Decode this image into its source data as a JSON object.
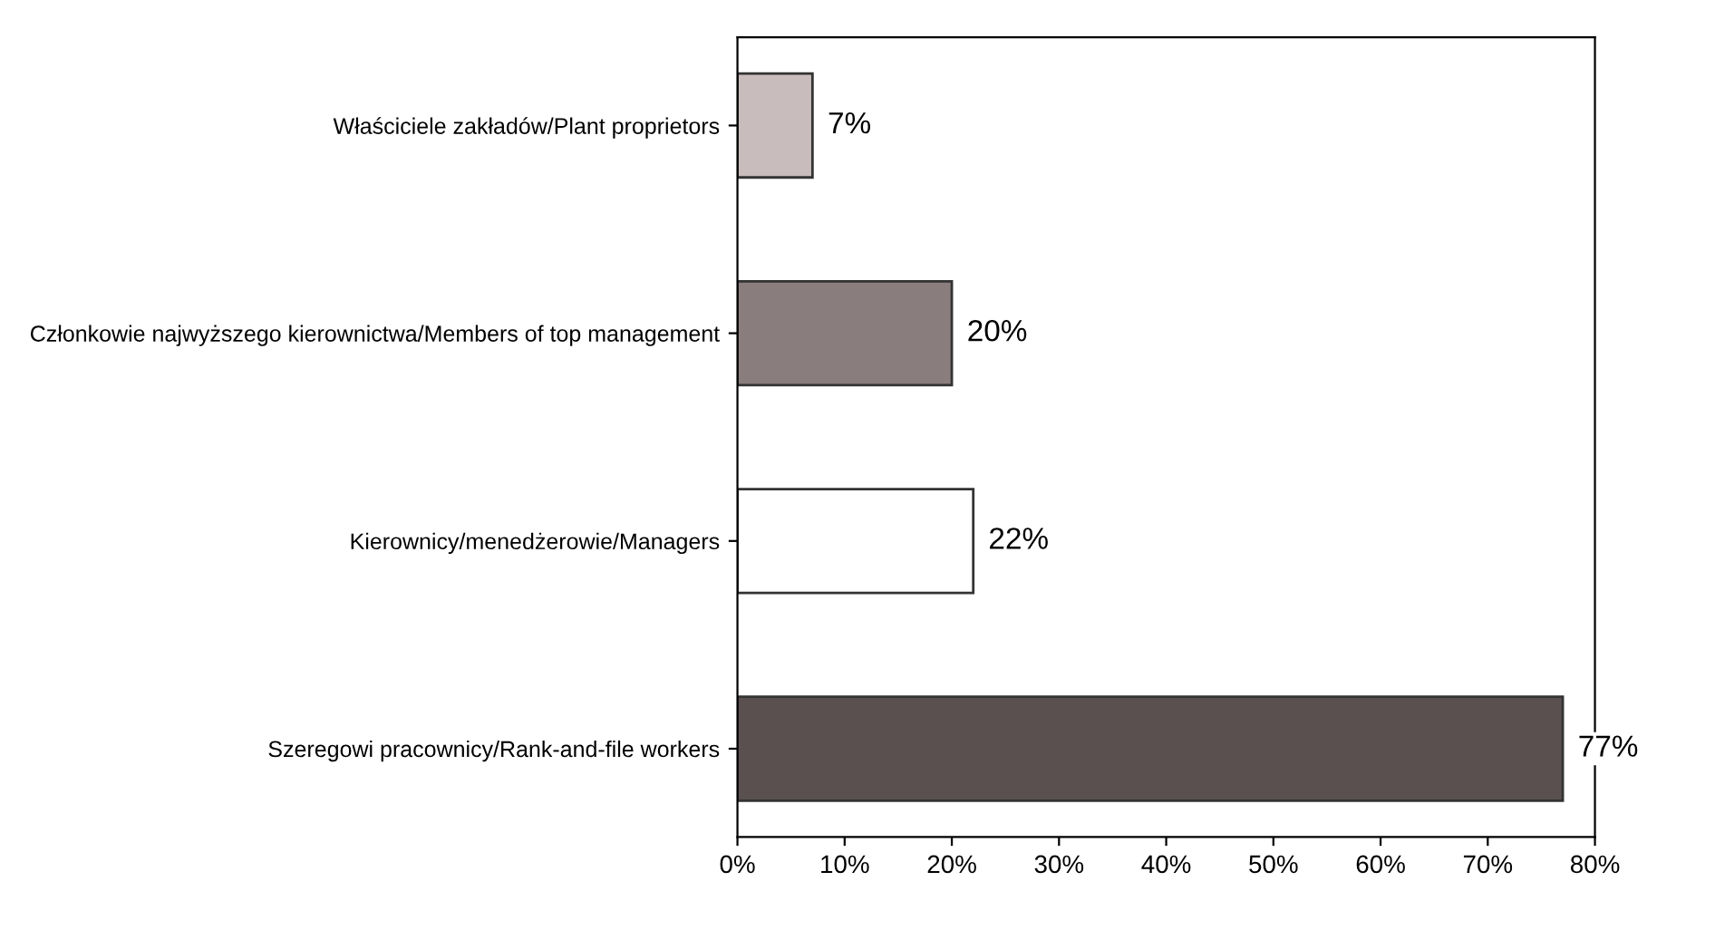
{
  "chart_data": {
    "type": "bar",
    "orientation": "horizontal",
    "categories": [
      "Właściciele zakładów/Plant proprietors",
      "Członkowie najwyższego kierownictwa/Members of top management",
      "Kierownicy/menedżerowie/Managers",
      "Szeregowi pracownicy/Rank-and-file workers"
    ],
    "values": [
      7,
      20,
      22,
      77
    ],
    "colors": [
      "#c9bcbc",
      "#8a7d7d",
      "#ffffff",
      "#5a5050"
    ],
    "value_labels": [
      "7%",
      "20%",
      "22%",
      "77%"
    ],
    "xlim": [
      0,
      80
    ],
    "xticks": [
      {
        "value": 0,
        "label": "0%"
      },
      {
        "value": 10,
        "label": "10%"
      },
      {
        "value": 20,
        "label": "20%"
      },
      {
        "value": 30,
        "label": "30%"
      },
      {
        "value": 40,
        "label": "40%"
      },
      {
        "value": 50,
        "label": "50%"
      },
      {
        "value": 60,
        "label": "60%"
      },
      {
        "value": 70,
        "label": "70%"
      },
      {
        "value": 80,
        "label": "80%"
      }
    ],
    "grid": false,
    "legend": false
  }
}
